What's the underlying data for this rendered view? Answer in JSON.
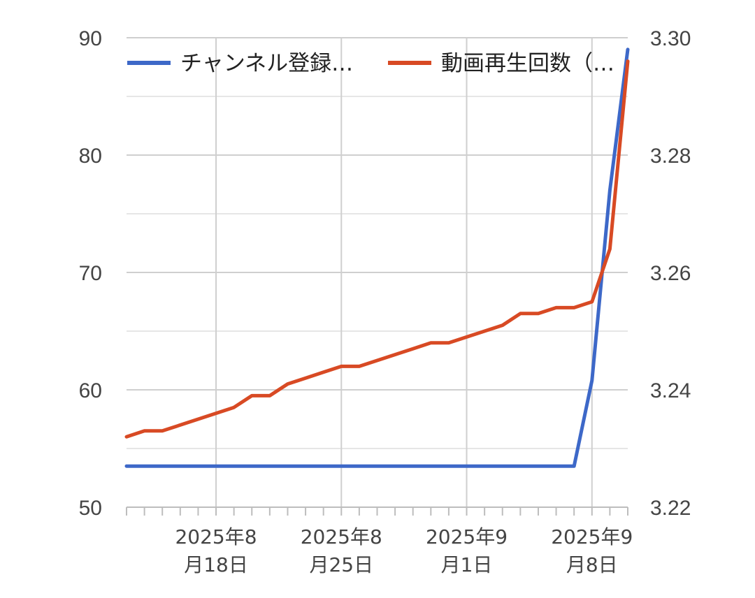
{
  "chart_data": {
    "type": "line",
    "title": "",
    "xlabel": "",
    "ylabel": "",
    "grid": true,
    "legend_position": "top",
    "x_ticks": [
      {
        "date": "2025-08-18",
        "line1": "2025年8",
        "line2": "月18日"
      },
      {
        "date": "2025-08-25",
        "line1": "2025年8",
        "line2": "月25日"
      },
      {
        "date": "2025-09-01",
        "line1": "2025年9",
        "line2": "月1日"
      },
      {
        "date": "2025-09-08",
        "line1": "2025年9",
        "line2": "月8日"
      }
    ],
    "x_range": [
      "2025-08-13",
      "2025-09-10"
    ],
    "y_left": {
      "min": 50,
      "max": 90,
      "ticks": [
        "50",
        "60",
        "70",
        "80",
        "90"
      ]
    },
    "y_right": {
      "min": 3.22,
      "max": 3.3,
      "ticks": [
        "3.22",
        "3.24",
        "3.26",
        "3.28",
        "3.30"
      ]
    },
    "series": [
      {
        "name": "チャンネル登録…",
        "axis": "left",
        "color": "#3d68c8",
        "points": [
          [
            "2025-08-13",
            53.5
          ],
          [
            "2025-08-14",
            53.5
          ],
          [
            "2025-08-15",
            53.5
          ],
          [
            "2025-08-16",
            53.5
          ],
          [
            "2025-08-17",
            53.5
          ],
          [
            "2025-08-18",
            53.5
          ],
          [
            "2025-08-19",
            53.5
          ],
          [
            "2025-08-20",
            53.5
          ],
          [
            "2025-08-21",
            53.5
          ],
          [
            "2025-08-22",
            53.5
          ],
          [
            "2025-08-23",
            53.5
          ],
          [
            "2025-08-24",
            53.5
          ],
          [
            "2025-08-25",
            53.5
          ],
          [
            "2025-08-26",
            53.5
          ],
          [
            "2025-08-27",
            53.5
          ],
          [
            "2025-08-28",
            53.5
          ],
          [
            "2025-08-29",
            53.5
          ],
          [
            "2025-08-30",
            53.5
          ],
          [
            "2025-08-31",
            53.5
          ],
          [
            "2025-09-01",
            53.5
          ],
          [
            "2025-09-02",
            53.5
          ],
          [
            "2025-09-03",
            53.5
          ],
          [
            "2025-09-04",
            53.5
          ],
          [
            "2025-09-05",
            53.5
          ],
          [
            "2025-09-06",
            53.5
          ],
          [
            "2025-09-07",
            53.5
          ],
          [
            "2025-09-08",
            60.8
          ],
          [
            "2025-09-09",
            77.0
          ],
          [
            "2025-09-10",
            89.0
          ]
        ]
      },
      {
        "name": "動画再生回数（…",
        "axis": "right",
        "color": "#d84a24",
        "points": [
          [
            "2025-08-13",
            3.232
          ],
          [
            "2025-08-14",
            3.233
          ],
          [
            "2025-08-15",
            3.233
          ],
          [
            "2025-08-16",
            3.234
          ],
          [
            "2025-08-17",
            3.235
          ],
          [
            "2025-08-18",
            3.236
          ],
          [
            "2025-08-19",
            3.237
          ],
          [
            "2025-08-20",
            3.239
          ],
          [
            "2025-08-21",
            3.239
          ],
          [
            "2025-08-22",
            3.241
          ],
          [
            "2025-08-23",
            3.242
          ],
          [
            "2025-08-24",
            3.243
          ],
          [
            "2025-08-25",
            3.244
          ],
          [
            "2025-08-26",
            3.244
          ],
          [
            "2025-08-27",
            3.245
          ],
          [
            "2025-08-28",
            3.246
          ],
          [
            "2025-08-29",
            3.247
          ],
          [
            "2025-08-30",
            3.248
          ],
          [
            "2025-08-31",
            3.248
          ],
          [
            "2025-09-01",
            3.249
          ],
          [
            "2025-09-02",
            3.25
          ],
          [
            "2025-09-03",
            3.251
          ],
          [
            "2025-09-04",
            3.253
          ],
          [
            "2025-09-05",
            3.253
          ],
          [
            "2025-09-06",
            3.254
          ],
          [
            "2025-09-07",
            3.254
          ],
          [
            "2025-09-08",
            3.255
          ],
          [
            "2025-09-09",
            3.264
          ],
          [
            "2025-09-10",
            3.296
          ]
        ]
      }
    ]
  }
}
